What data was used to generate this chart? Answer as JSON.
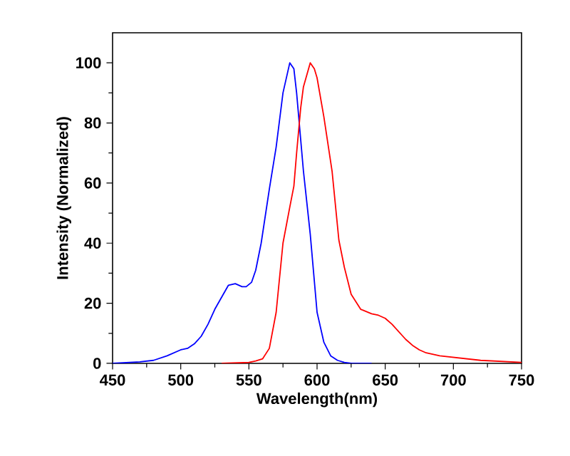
{
  "chart_data": {
    "type": "line",
    "xlabel": "Wavelength(nm)",
    "ylabel": "Intensity (Normalized)",
    "xlim": [
      450,
      750
    ],
    "ylim": [
      0,
      110
    ],
    "xticks": [
      450,
      500,
      550,
      600,
      650,
      700,
      750
    ],
    "yticks": [
      0,
      20,
      40,
      60,
      80,
      100
    ],
    "grid": false,
    "marker": "none",
    "line_style": "solid",
    "series": [
      {
        "color": "#0000ff",
        "x": [
          450,
          470,
          480,
          490,
          500,
          505,
          510,
          515,
          520,
          525,
          530,
          535,
          540,
          545,
          548,
          552,
          555,
          559,
          565,
          570,
          575,
          580,
          583,
          585,
          590,
          595,
          600,
          605,
          610,
          615,
          620,
          625,
          640
        ],
        "values": [
          0,
          0.5,
          1,
          2.5,
          4.5,
          5,
          6.5,
          9,
          13,
          18,
          22,
          26,
          26.5,
          25.5,
          25.5,
          27,
          31,
          40,
          58,
          72,
          90,
          100,
          98,
          90,
          64,
          43,
          17,
          7,
          2.5,
          1,
          0.3,
          0,
          0
        ]
      },
      {
        "color": "#ff0000",
        "x": [
          530,
          550,
          555,
          560,
          565,
          570,
          575,
          580,
          583,
          585,
          588,
          590,
          595,
          598,
          600,
          605,
          611,
          616,
          620,
          625,
          632,
          640,
          645,
          650,
          655,
          660,
          665,
          670,
          675,
          680,
          690,
          700,
          720,
          750
        ],
        "values": [
          0,
          0.3,
          0.8,
          1.5,
          5,
          17,
          40,
          52,
          59,
          70,
          85,
          92,
          100,
          98,
          95,
          82,
          64,
          41,
          32,
          23,
          18,
          16.5,
          16,
          15,
          13,
          10.5,
          8,
          6,
          4.5,
          3.5,
          2.5,
          2,
          1,
          0.3
        ]
      }
    ]
  }
}
